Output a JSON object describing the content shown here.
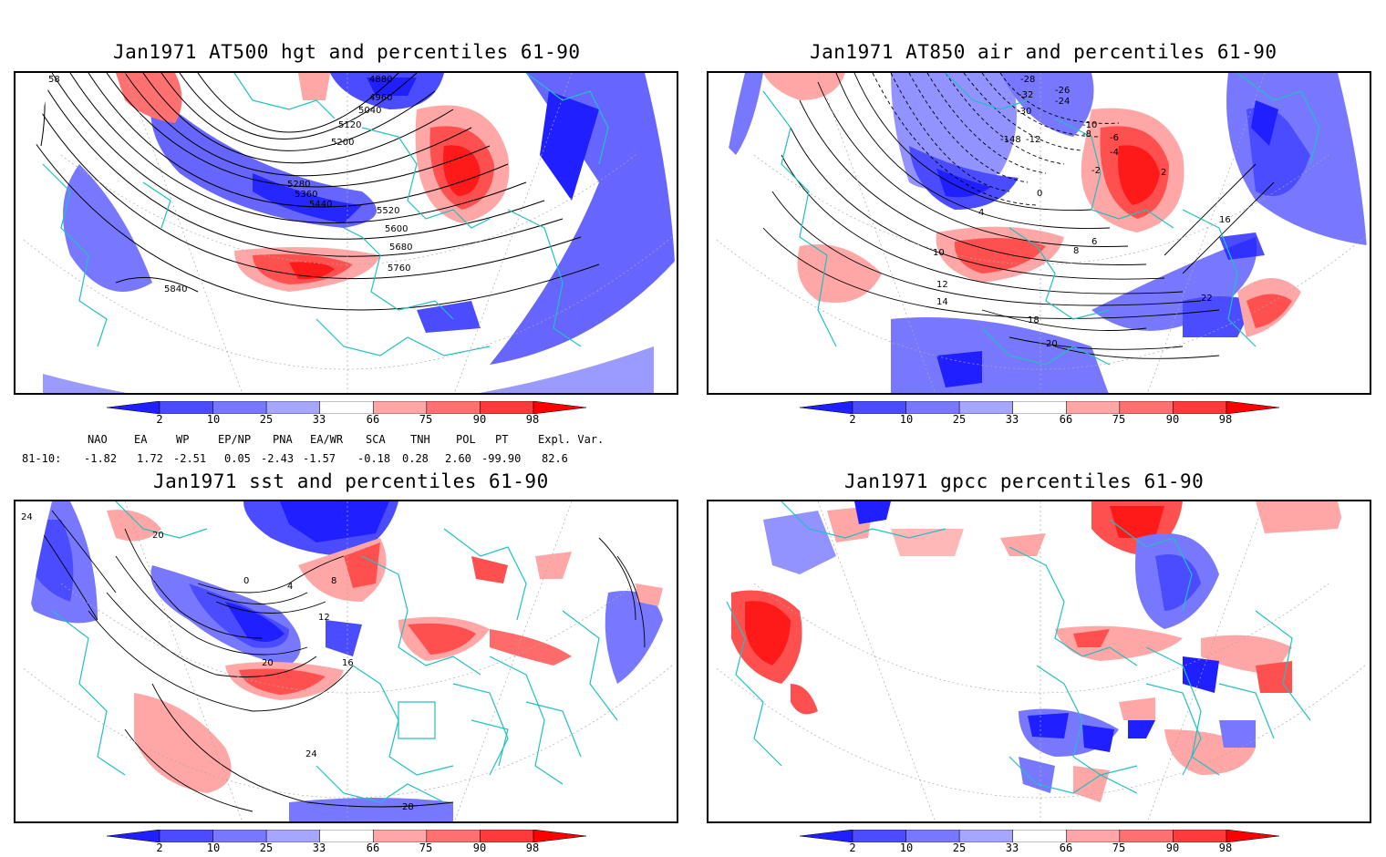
{
  "panels": [
    {
      "title": "Jan1971 AT500 hgt and percentiles 61-90",
      "contour_labels": [
        "4880",
        "4960",
        "5040",
        "5120",
        "5200",
        "5280",
        "5360",
        "5440",
        "5520",
        "5600",
        "5680",
        "5760",
        "5840",
        "58"
      ]
    },
    {
      "title": "Jan1971 AT850 air and percentiles 61-90",
      "contour_labels": [
        "-28",
        "-32",
        "-30",
        "-26",
        "-24",
        "-12",
        "-10",
        "-8",
        "-6",
        "-4",
        "-2",
        "0",
        "2",
        "4",
        "6",
        "8",
        "10",
        "12",
        "14",
        "16",
        "18",
        "20",
        "22",
        "-148"
      ]
    },
    {
      "title": "Jan1971 sst and percentiles 61-90",
      "contour_labels": [
        "24",
        "20",
        "0",
        "4",
        "8",
        "12",
        "16",
        "20",
        "24",
        "28"
      ]
    },
    {
      "title": "Jan1971 gpcc percentiles 61-90",
      "contour_labels": []
    }
  ],
  "colorbar": {
    "ticks": [
      "2",
      "10",
      "25",
      "33",
      "66",
      "75",
      "90",
      "98"
    ],
    "colors": [
      "#1f1fff",
      "#4b4bff",
      "#7878ff",
      "#a6a6ff",
      "#ffffff",
      "#ffa6a6",
      "#ff7070",
      "#ff3a3a",
      "#ff0000"
    ]
  },
  "teleconnections": {
    "row_label": "81-10:",
    "headers": [
      "NAO",
      "EA",
      "WP",
      "EP/NP",
      "PNA",
      "EA/WR",
      "SCA",
      "TNH",
      "POL",
      "PT",
      "Expl. Var."
    ],
    "values": [
      "-1.82",
      "1.72",
      "-2.51",
      "0.05",
      "-2.43",
      "-1.57",
      "-0.18",
      "0.28",
      "2.60",
      "-99.90",
      "82.6"
    ]
  },
  "colors": {
    "coast": "#20c0c0",
    "blue": "#4b4bff",
    "blue_light": "#a6a6ff",
    "blue_dark": "#1f1fff",
    "red": "#ff5050",
    "red_light": "#ffa6a6",
    "red_dark": "#ff1a1a"
  }
}
